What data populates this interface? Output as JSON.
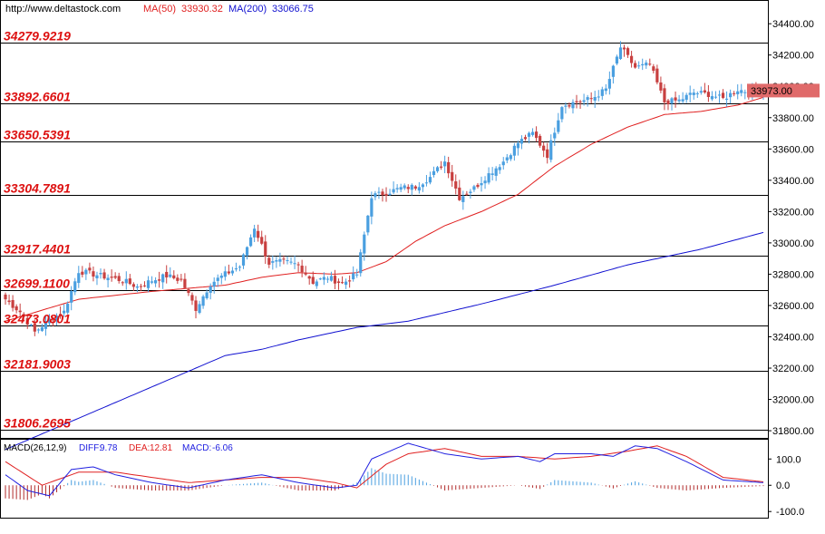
{
  "header": {
    "site": "http://www.deltastock.com",
    "ma50_label": "MA(50)",
    "ma50_value": "33930.32",
    "ma200_label": "MA(200)",
    "ma200_value": "33066.75"
  },
  "colors": {
    "bull": "#4a9fe0",
    "bear": "#c84040",
    "ma50": "#e02020",
    "ma200": "#1010d0",
    "levels_text": "#dd1111",
    "price_tag_bg": "#e06a6a",
    "macd_diff": "#2020e0",
    "macd_dea": "#e02020",
    "macd_hist": "#b02a2a"
  },
  "chart_data": [
    {
      "type": "candlestick",
      "panel": "price",
      "ylim": [
        31760,
        34540
      ],
      "y_ticks": [
        "34400.00",
        "34200.00",
        "34000.00",
        "33800.00",
        "33600.00",
        "33400.00",
        "33200.00",
        "33000.00",
        "32800.00",
        "32600.00",
        "32400.00",
        "32200.00",
        "32000.00",
        "31800.00"
      ],
      "y_tick_values": [
        34400,
        34200,
        34000,
        33800,
        33600,
        33400,
        33200,
        33000,
        32800,
        32600,
        32400,
        32200,
        32000,
        31800
      ],
      "last_price": "33973.00",
      "last_price_value": 33973,
      "levels": [
        "34279.9219",
        "33892.6601",
        "33650.5391",
        "33304.7891",
        "32917.4401",
        "32699.1100",
        "32473.0801",
        "32181.9003",
        "31806.2695"
      ],
      "level_values": [
        34279.9219,
        33892.6601,
        33650.5391,
        33304.7891,
        32917.4401,
        32699.11,
        32473.0801,
        32181.9003,
        31806.2695
      ],
      "close_anchors": [
        [
          0,
          32640
        ],
        [
          4,
          32560
        ],
        [
          8,
          32430
        ],
        [
          12,
          32510
        ],
        [
          16,
          32560
        ],
        [
          20,
          32820
        ],
        [
          24,
          32800
        ],
        [
          28,
          32780
        ],
        [
          32,
          32760
        ],
        [
          36,
          32720
        ],
        [
          40,
          32760
        ],
        [
          44,
          32790
        ],
        [
          48,
          32760
        ],
        [
          52,
          32580
        ],
        [
          56,
          32740
        ],
        [
          60,
          32800
        ],
        [
          64,
          32850
        ],
        [
          68,
          33100
        ],
        [
          72,
          32870
        ],
        [
          76,
          32880
        ],
        [
          80,
          32860
        ],
        [
          84,
          32750
        ],
        [
          88,
          32780
        ],
        [
          92,
          32740
        ],
        [
          96,
          32800
        ],
        [
          100,
          33300
        ],
        [
          104,
          33320
        ],
        [
          108,
          33350
        ],
        [
          112,
          33360
        ],
        [
          116,
          33420
        ],
        [
          120,
          33520
        ],
        [
          124,
          33290
        ],
        [
          128,
          33350
        ],
        [
          132,
          33440
        ],
        [
          136,
          33520
        ],
        [
          140,
          33640
        ],
        [
          144,
          33700
        ],
        [
          148,
          33560
        ],
        [
          152,
          33880
        ],
        [
          156,
          33900
        ],
        [
          160,
          33920
        ],
        [
          164,
          33980
        ],
        [
          168,
          34250
        ],
        [
          172,
          34120
        ],
        [
          176,
          34140
        ],
        [
          180,
          33900
        ],
        [
          184,
          33910
        ],
        [
          188,
          33960
        ],
        [
          192,
          33950
        ],
        [
          196,
          33920
        ],
        [
          200,
          33980
        ],
        [
          204,
          33960
        ],
        [
          207,
          33973
        ]
      ],
      "ma50_anchors": [
        [
          0,
          32500
        ],
        [
          20,
          32640
        ],
        [
          40,
          32690
        ],
        [
          60,
          32730
        ],
        [
          70,
          32780
        ],
        [
          80,
          32810
        ],
        [
          90,
          32800
        ],
        [
          96,
          32810
        ],
        [
          104,
          32880
        ],
        [
          112,
          33010
        ],
        [
          120,
          33110
        ],
        [
          130,
          33200
        ],
        [
          140,
          33310
        ],
        [
          150,
          33490
        ],
        [
          160,
          33630
        ],
        [
          170,
          33740
        ],
        [
          180,
          33820
        ],
        [
          190,
          33840
        ],
        [
          200,
          33880
        ],
        [
          207,
          33930
        ]
      ],
      "ma200_anchors": [
        [
          0,
          31680
        ],
        [
          20,
          31880
        ],
        [
          40,
          32080
        ],
        [
          60,
          32280
        ],
        [
          70,
          32320
        ],
        [
          80,
          32380
        ],
        [
          96,
          32460
        ],
        [
          110,
          32500
        ],
        [
          130,
          32610
        ],
        [
          150,
          32730
        ],
        [
          170,
          32860
        ],
        [
          190,
          32960
        ],
        [
          207,
          33066.75
        ]
      ]
    },
    {
      "type": "macd",
      "panel": "indicator",
      "label": "MACD(26,12,9)",
      "diff_label": "DIFF:",
      "diff_value": "9.78",
      "dea_label": "DEA:",
      "dea_value": "12.81",
      "macd_label": "MACD:",
      "macd_value": "-6.06",
      "ylim": [
        -120,
        170
      ],
      "y_ticks": [
        "100.0",
        "0.0",
        "-100.0"
      ],
      "y_tick_values": [
        100,
        0,
        -100
      ],
      "diff_anchors": [
        [
          0,
          40
        ],
        [
          6,
          -20
        ],
        [
          12,
          -40
        ],
        [
          18,
          60
        ],
        [
          24,
          70
        ],
        [
          30,
          40
        ],
        [
          40,
          10
        ],
        [
          50,
          -10
        ],
        [
          60,
          20
        ],
        [
          70,
          40
        ],
        [
          80,
          10
        ],
        [
          90,
          -10
        ],
        [
          96,
          0
        ],
        [
          100,
          100
        ],
        [
          110,
          160
        ],
        [
          120,
          120
        ],
        [
          130,
          100
        ],
        [
          140,
          110
        ],
        [
          146,
          90
        ],
        [
          150,
          120
        ],
        [
          160,
          120
        ],
        [
          166,
          110
        ],
        [
          172,
          150
        ],
        [
          178,
          140
        ],
        [
          186,
          90
        ],
        [
          196,
          20
        ],
        [
          207,
          10
        ]
      ],
      "dea_anchors": [
        [
          0,
          90
        ],
        [
          10,
          0
        ],
        [
          20,
          50
        ],
        [
          30,
          50
        ],
        [
          40,
          30
        ],
        [
          50,
          10
        ],
        [
          60,
          20
        ],
        [
          70,
          30
        ],
        [
          80,
          30
        ],
        [
          90,
          10
        ],
        [
          96,
          -10
        ],
        [
          104,
          80
        ],
        [
          110,
          120
        ],
        [
          120,
          140
        ],
        [
          130,
          110
        ],
        [
          140,
          110
        ],
        [
          150,
          100
        ],
        [
          160,
          110
        ],
        [
          170,
          130
        ],
        [
          178,
          150
        ],
        [
          186,
          110
        ],
        [
          196,
          30
        ],
        [
          207,
          13
        ]
      ]
    }
  ]
}
